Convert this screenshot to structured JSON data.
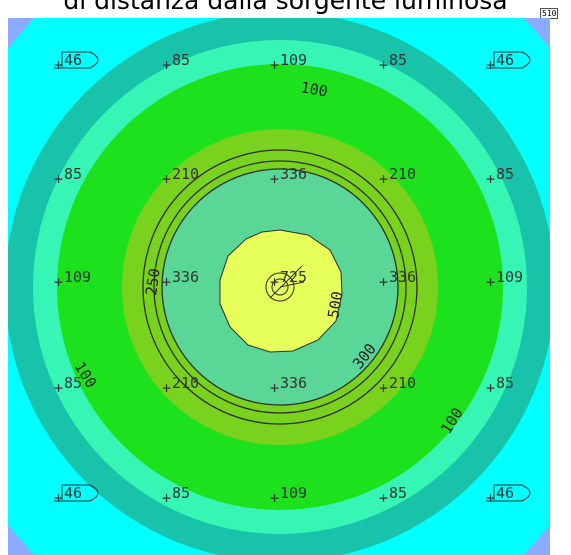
{
  "title": "di distanza dalla sorgente luminosa",
  "scale_badge": "510",
  "colors": {
    "background": "#00ffff",
    "corner": "#8caaff",
    "band_teal": "#19c3aa",
    "band_mint": "#37f5b4",
    "band_green": "#1ee11e",
    "band_olive": "#78d21e",
    "band_seafoam": "#5ad796",
    "band_yellow": "#e6ff5a",
    "contour_line": "#2d2d2d"
  },
  "grid_values": [
    [
      "46",
      "85",
      "109",
      "85",
      "46"
    ],
    [
      "85",
      "210",
      "336",
      "210",
      "85"
    ],
    [
      "109",
      "336",
      "725",
      "336",
      "109"
    ],
    [
      "85",
      "210",
      "336",
      "210",
      "85"
    ],
    [
      "46",
      "85",
      "109",
      "85",
      "46"
    ]
  ],
  "contour_labels": [
    "100",
    "250",
    "300",
    "500",
    "100",
    "100"
  ]
}
